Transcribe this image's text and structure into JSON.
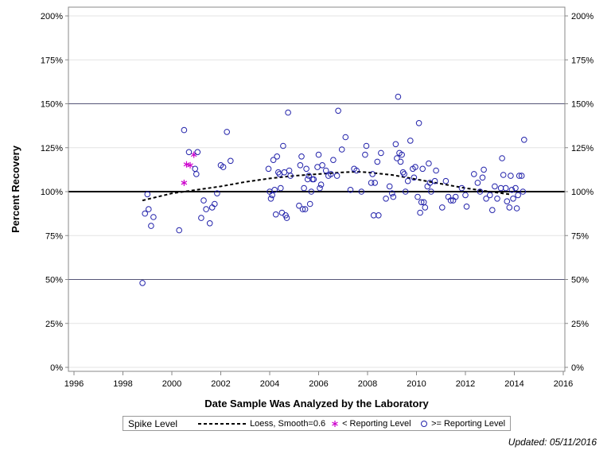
{
  "chart_data": {
    "type": "scatter",
    "xlabel": "Date Sample Was Analyzed by the Laboratory",
    "ylabel": "Percent Recovery",
    "xlim": [
      1996,
      2016
    ],
    "ylim": [
      0,
      200
    ],
    "x_ticks": [
      1996,
      1998,
      2000,
      2002,
      2004,
      2006,
      2008,
      2010,
      2012,
      2014,
      2016
    ],
    "y_ticks": [
      0,
      25,
      50,
      75,
      100,
      125,
      150,
      175,
      200
    ],
    "y_tick_labels": [
      "0%",
      "25%",
      "50%",
      "75%",
      "100%",
      "125%",
      "150%",
      "175%",
      "200%"
    ],
    "reference_lines": {
      "bold": [
        100
      ],
      "thin": [
        50,
        150
      ]
    },
    "grid": true,
    "legend_title": "Spike Level",
    "series": [
      {
        "name": "Loess, Smoothing=0.6",
        "marker": "dashed-line",
        "color": "#000000",
        "points": [
          [
            1998.8,
            95
          ],
          [
            2000.0,
            99
          ],
          [
            2001.0,
            101
          ],
          [
            2002.0,
            103
          ],
          [
            2003.0,
            105.5
          ],
          [
            2004.0,
            107.5
          ],
          [
            2005.0,
            109
          ],
          [
            2006.0,
            110
          ],
          [
            2007.0,
            111
          ],
          [
            2007.6,
            111.3
          ],
          [
            2008.0,
            111
          ],
          [
            2009.0,
            109.5
          ],
          [
            2010.0,
            107
          ],
          [
            2011.0,
            104.5
          ],
          [
            2012.0,
            102
          ],
          [
            2013.0,
            100
          ],
          [
            2013.8,
            98.5
          ]
        ]
      },
      {
        "name": "< Reporting Level",
        "marker": "star",
        "color": "#cc00cc",
        "points": [
          [
            2000.5,
            105
          ],
          [
            2000.6,
            115.5
          ],
          [
            2000.75,
            115
          ],
          [
            2000.9,
            121
          ]
        ]
      },
      {
        "name": ">= Reporting Level",
        "marker": "circle",
        "color": "#2222aa",
        "points": [
          [
            1998.8,
            48
          ],
          [
            1998.9,
            87.5
          ],
          [
            1999.0,
            98.5
          ],
          [
            1999.05,
            90
          ],
          [
            1999.15,
            80.5
          ],
          [
            1999.25,
            85.5
          ],
          [
            2000.3,
            78
          ],
          [
            2000.5,
            135
          ],
          [
            2000.7,
            122.5
          ],
          [
            2000.95,
            113
          ],
          [
            2001.0,
            110
          ],
          [
            2001.05,
            122.5
          ],
          [
            2001.2,
            85
          ],
          [
            2001.3,
            95
          ],
          [
            2001.4,
            90
          ],
          [
            2001.55,
            82
          ],
          [
            2001.65,
            91
          ],
          [
            2001.75,
            93
          ],
          [
            2001.85,
            99
          ],
          [
            2002.0,
            115
          ],
          [
            2002.1,
            114
          ],
          [
            2002.25,
            134
          ],
          [
            2002.4,
            117.5
          ],
          [
            2003.95,
            113
          ],
          [
            2004.0,
            100
          ],
          [
            2004.05,
            96
          ],
          [
            2004.1,
            98
          ],
          [
            2004.15,
            118
          ],
          [
            2004.2,
            101
          ],
          [
            2004.25,
            87
          ],
          [
            2004.3,
            120
          ],
          [
            2004.35,
            111
          ],
          [
            2004.4,
            110
          ],
          [
            2004.45,
            102
          ],
          [
            2004.5,
            88
          ],
          [
            2004.55,
            126
          ],
          [
            2004.6,
            111
          ],
          [
            2004.65,
            86.5
          ],
          [
            2004.7,
            85
          ],
          [
            2004.75,
            145
          ],
          [
            2004.8,
            112
          ],
          [
            2004.85,
            109
          ],
          [
            2005.2,
            92
          ],
          [
            2005.25,
            115
          ],
          [
            2005.3,
            120
          ],
          [
            2005.35,
            90
          ],
          [
            2005.4,
            102
          ],
          [
            2005.45,
            90
          ],
          [
            2005.5,
            113
          ],
          [
            2005.55,
            107
          ],
          [
            2005.6,
            109
          ],
          [
            2005.65,
            93
          ],
          [
            2005.7,
            100
          ],
          [
            2005.75,
            107
          ],
          [
            2005.8,
            107
          ],
          [
            2005.95,
            114
          ],
          [
            2006.0,
            121
          ],
          [
            2006.05,
            102
          ],
          [
            2006.1,
            104
          ],
          [
            2006.15,
            115
          ],
          [
            2006.3,
            112
          ],
          [
            2006.4,
            109
          ],
          [
            2006.5,
            110
          ],
          [
            2006.6,
            118
          ],
          [
            2006.75,
            109
          ],
          [
            2006.8,
            146
          ],
          [
            2006.95,
            124
          ],
          [
            2007.1,
            131
          ],
          [
            2007.3,
            101
          ],
          [
            2007.45,
            113
          ],
          [
            2007.55,
            112
          ],
          [
            2007.75,
            100
          ],
          [
            2007.9,
            121
          ],
          [
            2007.95,
            126
          ],
          [
            2008.15,
            105
          ],
          [
            2008.2,
            110
          ],
          [
            2008.25,
            86.5
          ],
          [
            2008.3,
            105
          ],
          [
            2008.4,
            117
          ],
          [
            2008.45,
            86.5
          ],
          [
            2008.55,
            122
          ],
          [
            2008.75,
            96
          ],
          [
            2008.9,
            103
          ],
          [
            2009.0,
            99
          ],
          [
            2009.05,
            97
          ],
          [
            2009.15,
            127
          ],
          [
            2009.2,
            119
          ],
          [
            2009.25,
            154
          ],
          [
            2009.3,
            122
          ],
          [
            2009.35,
            117
          ],
          [
            2009.4,
            121
          ],
          [
            2009.45,
            111
          ],
          [
            2009.5,
            110
          ],
          [
            2009.55,
            100
          ],
          [
            2009.65,
            106
          ],
          [
            2009.75,
            129
          ],
          [
            2009.85,
            113
          ],
          [
            2009.9,
            108
          ],
          [
            2009.95,
            114
          ],
          [
            2010.05,
            97
          ],
          [
            2010.1,
            139
          ],
          [
            2010.15,
            88
          ],
          [
            2010.2,
            94
          ],
          [
            2010.25,
            113
          ],
          [
            2010.3,
            94
          ],
          [
            2010.35,
            91
          ],
          [
            2010.45,
            103
          ],
          [
            2010.5,
            116
          ],
          [
            2010.55,
            105
          ],
          [
            2010.6,
            100
          ],
          [
            2010.75,
            106
          ],
          [
            2010.8,
            112
          ],
          [
            2011.05,
            91
          ],
          [
            2011.2,
            106
          ],
          [
            2011.3,
            97
          ],
          [
            2011.4,
            95
          ],
          [
            2011.5,
            95
          ],
          [
            2011.6,
            97
          ],
          [
            2011.85,
            102
          ],
          [
            2012.0,
            98
          ],
          [
            2012.05,
            91.5
          ],
          [
            2012.35,
            110
          ],
          [
            2012.5,
            105
          ],
          [
            2012.6,
            100
          ],
          [
            2012.7,
            108
          ],
          [
            2012.75,
            112.5
          ],
          [
            2012.85,
            96
          ],
          [
            2013.0,
            98
          ],
          [
            2013.1,
            89.5
          ],
          [
            2013.2,
            103
          ],
          [
            2013.3,
            96
          ],
          [
            2013.45,
            102
          ],
          [
            2013.5,
            119
          ],
          [
            2013.55,
            109.5
          ],
          [
            2013.65,
            102
          ],
          [
            2013.7,
            94.5
          ],
          [
            2013.8,
            91
          ],
          [
            2013.85,
            109
          ],
          [
            2013.9,
            101
          ],
          [
            2013.95,
            96
          ],
          [
            2014.05,
            102
          ],
          [
            2014.1,
            90.5
          ],
          [
            2014.15,
            98
          ],
          [
            2014.2,
            109
          ],
          [
            2014.3,
            109
          ],
          [
            2014.35,
            100
          ],
          [
            2014.4,
            129.5
          ]
        ]
      }
    ]
  },
  "legend": {
    "title": "Spike Level",
    "items": [
      {
        "label": "Loess, Smooth=0.6"
      },
      {
        "label": "< Reporting Level"
      },
      {
        "label": ">= Reporting Level"
      }
    ]
  },
  "footer": {
    "updated": "Updated: 05/11/2016"
  }
}
